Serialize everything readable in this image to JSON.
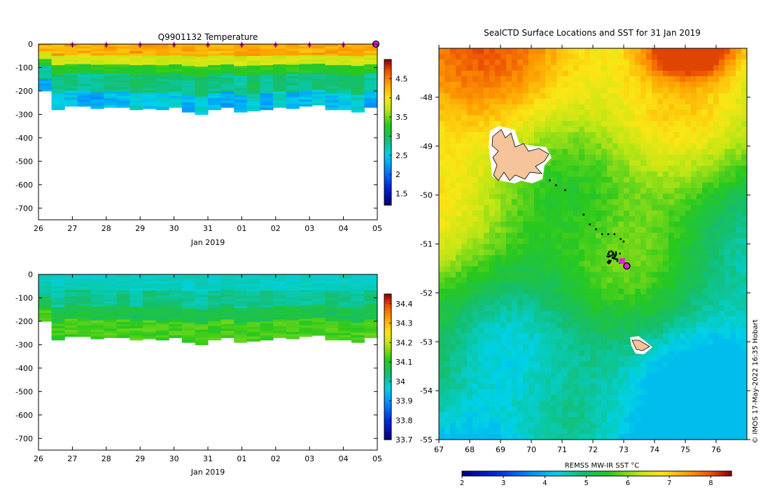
{
  "chart_data": [
    {
      "type": "heatmap",
      "name": "temperature-section",
      "title": "Q9901132  Temperature",
      "xlabel": "Jan 2019",
      "x_ticks": [
        "26",
        "27",
        "28",
        "29",
        "30",
        "31",
        "01",
        "02",
        "03",
        "04",
        "05"
      ],
      "y_ticks": [
        "0",
        "-100",
        "-200",
        "-300",
        "-400",
        "-500",
        "-600",
        "-700"
      ],
      "ylim": [
        -750,
        0
      ],
      "colorbar_ticks": [
        "4.5",
        "4",
        "3.5",
        "3",
        "2.5",
        "2",
        "1.5"
      ],
      "colorbar_range": [
        1.2,
        5.0
      ],
      "surface_marker_days": [
        "27",
        "28",
        "29",
        "30",
        "31",
        "01",
        "02",
        "03",
        "04"
      ],
      "profiles_approx_max_depth_m": [
        -200,
        -280,
        -265,
        -265,
        -275,
        -270,
        -270,
        -280,
        -275,
        -280,
        -270,
        -290,
        -300,
        -280,
        -270,
        -290,
        -285,
        -280,
        -270,
        -275,
        -265,
        -260,
        -280,
        -280,
        -290,
        -270
      ]
    },
    {
      "type": "heatmap",
      "name": "salinity-section",
      "title": "",
      "xlabel": "Jan 2019",
      "x_ticks": [
        "26",
        "27",
        "28",
        "29",
        "30",
        "31",
        "01",
        "02",
        "03",
        "04",
        "05"
      ],
      "y_ticks": [
        "0",
        "-100",
        "-200",
        "-300",
        "-400",
        "-500",
        "-600",
        "-700"
      ],
      "ylim": [
        -750,
        0
      ],
      "colorbar_ticks": [
        "34.4",
        "34.3",
        "34.2",
        "34.1",
        "34",
        "33.9",
        "33.8",
        "33.7"
      ],
      "colorbar_range": [
        33.7,
        34.45
      ]
    },
    {
      "type": "heatmap",
      "name": "sst-map",
      "title": "SealCTD Surface Locations and SST for 31 Jan 2019",
      "x_ticks": [
        "67",
        "68",
        "69",
        "70",
        "71",
        "72",
        "73",
        "74",
        "75",
        "76"
      ],
      "y_ticks": [
        "-48",
        "-49",
        "-50",
        "-51",
        "-52",
        "-53",
        "-54",
        "-55"
      ],
      "xlim": [
        67,
        77
      ],
      "ylim": [
        -55,
        -47
      ],
      "colorbar_label": "REMSS MW-IR SST °C",
      "colorbar_ticks": [
        "2",
        "3",
        "4",
        "5",
        "6",
        "7",
        "8"
      ],
      "colorbar_range": [
        2,
        8.5
      ],
      "track_points_lon_lat": [
        [
          70.6,
          -49.7
        ],
        [
          70.8,
          -49.8
        ],
        [
          71.1,
          -49.9
        ],
        [
          71.7,
          -50.4
        ],
        [
          71.9,
          -50.6
        ],
        [
          72.1,
          -50.7
        ],
        [
          72.3,
          -50.8
        ],
        [
          72.5,
          -50.8
        ],
        [
          72.7,
          -50.8
        ],
        [
          72.9,
          -50.9
        ],
        [
          73.0,
          -50.95
        ],
        [
          72.5,
          -51.2
        ],
        [
          72.6,
          -51.15
        ],
        [
          72.55,
          -51.25
        ],
        [
          72.7,
          -51.3
        ],
        [
          72.8,
          -51.35
        ],
        [
          73.0,
          -51.35
        ],
        [
          73.05,
          -51.45
        ]
      ],
      "last_position_lon_lat": [
        73.1,
        -51.45
      ]
    }
  ],
  "credit": "© IMOS 17-May-2022 16:35 Hobart",
  "colors": {
    "marker": "#e81ed8",
    "land": "#f5c49a"
  }
}
